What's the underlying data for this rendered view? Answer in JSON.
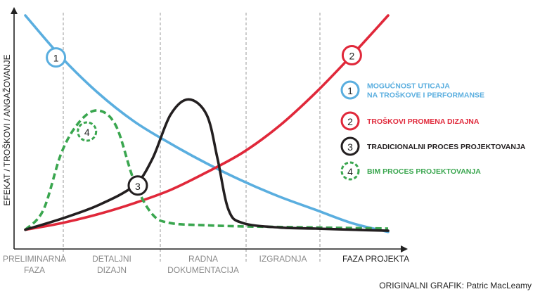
{
  "chart_data": {
    "type": "line",
    "ylabel": "EFEKAT / TROŠKOVI / ANGAŽOVANJE",
    "xlabel": "FAZA PROJEKTA",
    "x_range": [
      0,
      1
    ],
    "y_range": [
      0,
      1
    ],
    "grid": "vertical dashed phase dividers",
    "phases": [
      {
        "lines": [
          "PRELIMINARNA",
          "FAZA"
        ]
      },
      {
        "lines": [
          "DETALJNI",
          "DIZAJN"
        ]
      },
      {
        "lines": [
          "RADNA",
          "DOKUMENTACIJA"
        ]
      },
      {
        "lines": [
          "IZGRADNJA"
        ]
      }
    ],
    "series": [
      {
        "id": "1",
        "name": "MOGUĆNOST UTICAJA NA TROŠKOVE I PERFORMANSE",
        "legend_lines": [
          "MOGUĆNOST UTICAJA",
          "NA TROŠKOVE I PERFORMANSE"
        ],
        "color": "#5aaedf",
        "style": "solid",
        "x": [
          0.0,
          0.1,
          0.2,
          0.3,
          0.4,
          0.5,
          0.6,
          0.7,
          0.8,
          0.9,
          1.0
        ],
        "y": [
          1.0,
          0.81,
          0.65,
          0.52,
          0.42,
          0.33,
          0.25,
          0.18,
          0.12,
          0.06,
          0.02
        ]
      },
      {
        "id": "2",
        "name": "TROŠKOVI PROMENA DIZAJNA",
        "legend_lines": [
          "TROŠKOVI PROMENA DIZAJNA"
        ],
        "color": "#e0283a",
        "style": "solid",
        "x": [
          0.0,
          0.1,
          0.2,
          0.3,
          0.4,
          0.5,
          0.6,
          0.7,
          0.8,
          0.9,
          1.0
        ],
        "y": [
          0.03,
          0.06,
          0.1,
          0.15,
          0.21,
          0.29,
          0.38,
          0.5,
          0.65,
          0.82,
          1.0
        ]
      },
      {
        "id": "3",
        "name": "TRADICIONALNI PROCES PROJEKTOVANJA",
        "legend_lines": [
          "TRADICIONALNI PROCES PROJEKTOVANJA"
        ],
        "color": "#231f20",
        "style": "solid",
        "x": [
          0.0,
          0.1,
          0.2,
          0.3,
          0.35,
          0.4,
          0.45,
          0.5,
          0.53,
          0.56,
          0.6,
          0.7,
          0.8,
          0.9,
          1.0
        ],
        "y": [
          0.03,
          0.08,
          0.14,
          0.23,
          0.35,
          0.55,
          0.62,
          0.55,
          0.35,
          0.12,
          0.06,
          0.04,
          0.035,
          0.03,
          0.025
        ]
      },
      {
        "id": "4",
        "name": "BIM PROCES PROJEKTOVANJA",
        "legend_lines": [
          "BIM PROCES PROJEKTOVANJA"
        ],
        "color": "#3aa64f",
        "style": "dashed",
        "x": [
          0.0,
          0.05,
          0.1,
          0.15,
          0.2,
          0.25,
          0.3,
          0.35,
          0.4,
          0.5,
          0.6,
          0.8,
          1.0
        ],
        "y": [
          0.03,
          0.12,
          0.38,
          0.52,
          0.57,
          0.5,
          0.25,
          0.1,
          0.06,
          0.05,
          0.045,
          0.04,
          0.035
        ]
      }
    ]
  },
  "credit": "ORIGINALNI GRAFIK: Patric MacLeamy"
}
